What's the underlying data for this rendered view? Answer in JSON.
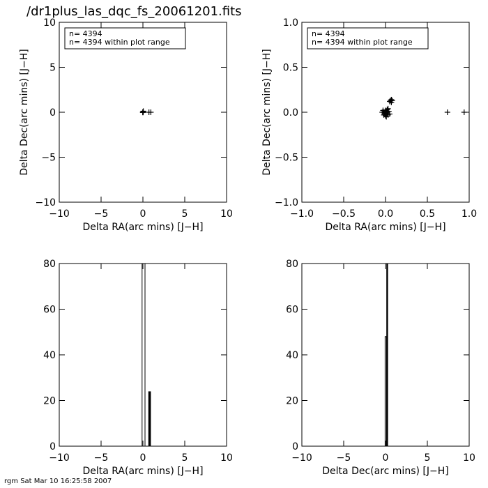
{
  "page": {
    "title": "/dr1plus_las_dqc_fs_20061201.fits",
    "footer": "rgm Sat Mar 10 16:25:58 2007"
  },
  "chart_data": [
    {
      "type": "scatter",
      "xlabel": "Delta RA(arc mins) [J−H]",
      "ylabel": "Delta Dec(arc mins) [J−H]",
      "xlim": [
        -10,
        10
      ],
      "ylim": [
        -10,
        10
      ],
      "xticks": [
        "−10",
        "−5",
        "0",
        "5",
        "10"
      ],
      "xtick_values": [
        -10,
        -5,
        0,
        5,
        10
      ],
      "yticks": [
        "−10",
        "−5",
        "0",
        "5",
        "10"
      ],
      "ytick_values": [
        -10,
        -5,
        0,
        5,
        10
      ],
      "legend": [
        "n=  4394",
        "n=  4394 within plot range"
      ],
      "legend_position": "top-left",
      "points": [
        [
          0,
          0
        ],
        [
          0.02,
          0.01
        ],
        [
          -0.02,
          -0.01
        ],
        [
          0.01,
          -0.02
        ],
        [
          0.05,
          0.12
        ],
        [
          0.03,
          0.05
        ],
        [
          -0.01,
          0.03
        ],
        [
          0.72,
          0.0
        ],
        [
          0.95,
          0.0
        ]
      ]
    },
    {
      "type": "scatter",
      "xlabel": "Delta RA(arc mins) [J−H]",
      "ylabel": "Delta Dec(arc mins) [J−H]",
      "xlim": [
        -1,
        1
      ],
      "ylim": [
        -1,
        1
      ],
      "xticks": [
        "−1.0",
        "−0.5",
        "0.0",
        "0.5",
        "1.0"
      ],
      "xtick_values": [
        -1,
        -0.5,
        0,
        0.5,
        1
      ],
      "yticks": [
        "−1.0",
        "−0.5",
        "0.0",
        "0.5",
        "1.0"
      ],
      "ytick_values": [
        -1,
        -0.5,
        0,
        0.5,
        1
      ],
      "legend": [
        "n=  4394",
        "n=  4394 within plot range"
      ],
      "legend_position": "top-left",
      "points": [
        [
          -0.02,
          0.0
        ],
        [
          0.0,
          0.02
        ],
        [
          0.02,
          0.0
        ],
        [
          0.0,
          -0.02
        ],
        [
          0.01,
          0.01
        ],
        [
          -0.01,
          -0.01
        ],
        [
          0.03,
          -0.03
        ],
        [
          -0.03,
          0.02
        ],
        [
          0.04,
          0.01
        ],
        [
          0.0,
          -0.04
        ],
        [
          -0.02,
          -0.03
        ],
        [
          0.02,
          0.03
        ],
        [
          0.05,
          -0.02
        ],
        [
          -0.04,
          0.0
        ],
        [
          0.01,
          -0.05
        ],
        [
          0.03,
          0.04
        ],
        [
          0.06,
          0.13
        ],
        [
          0.07,
          0.11
        ],
        [
          0.05,
          0.12
        ],
        [
          0.08,
          0.13
        ],
        [
          0.07,
          0.14
        ],
        [
          0.74,
          0.0
        ],
        [
          0.94,
          0.0
        ]
      ]
    },
    {
      "type": "bar",
      "xlabel": "Delta RA(arc mins) [J−H]",
      "ylabel": "",
      "xlim": [
        -10,
        10
      ],
      "ylim": [
        0,
        80
      ],
      "xticks": [
        "−10",
        "−5",
        "0",
        "5",
        "10"
      ],
      "xtick_values": [
        -10,
        -5,
        0,
        5,
        10
      ],
      "yticks": [
        "0",
        "20",
        "40",
        "60",
        "80"
      ],
      "ytick_values": [
        0,
        20,
        40,
        60,
        80
      ],
      "bars": [
        {
          "x0": -0.1,
          "x1": 0.25,
          "value": 80,
          "style": "outline"
        },
        {
          "x0": 0.65,
          "x1": 0.95,
          "value": 24,
          "style": "filled"
        }
      ]
    },
    {
      "type": "bar",
      "xlabel": "Delta Dec(arc mins) [J−H]",
      "ylabel": "",
      "xlim": [
        -10,
        10
      ],
      "ylim": [
        0,
        80
      ],
      "xticks": [
        "−10",
        "−5",
        "0",
        "5",
        "10"
      ],
      "xtick_values": [
        -10,
        -5,
        0,
        5,
        10
      ],
      "yticks": [
        "0",
        "20",
        "40",
        "60",
        "80"
      ],
      "ytick_values": [
        0,
        20,
        40,
        60,
        80
      ],
      "bars": [
        {
          "x0": -0.05,
          "x1": 0.1,
          "value": 48,
          "style": "outline"
        },
        {
          "x0": 0.1,
          "x1": 0.3,
          "value": 80,
          "style": "filled"
        }
      ]
    }
  ]
}
